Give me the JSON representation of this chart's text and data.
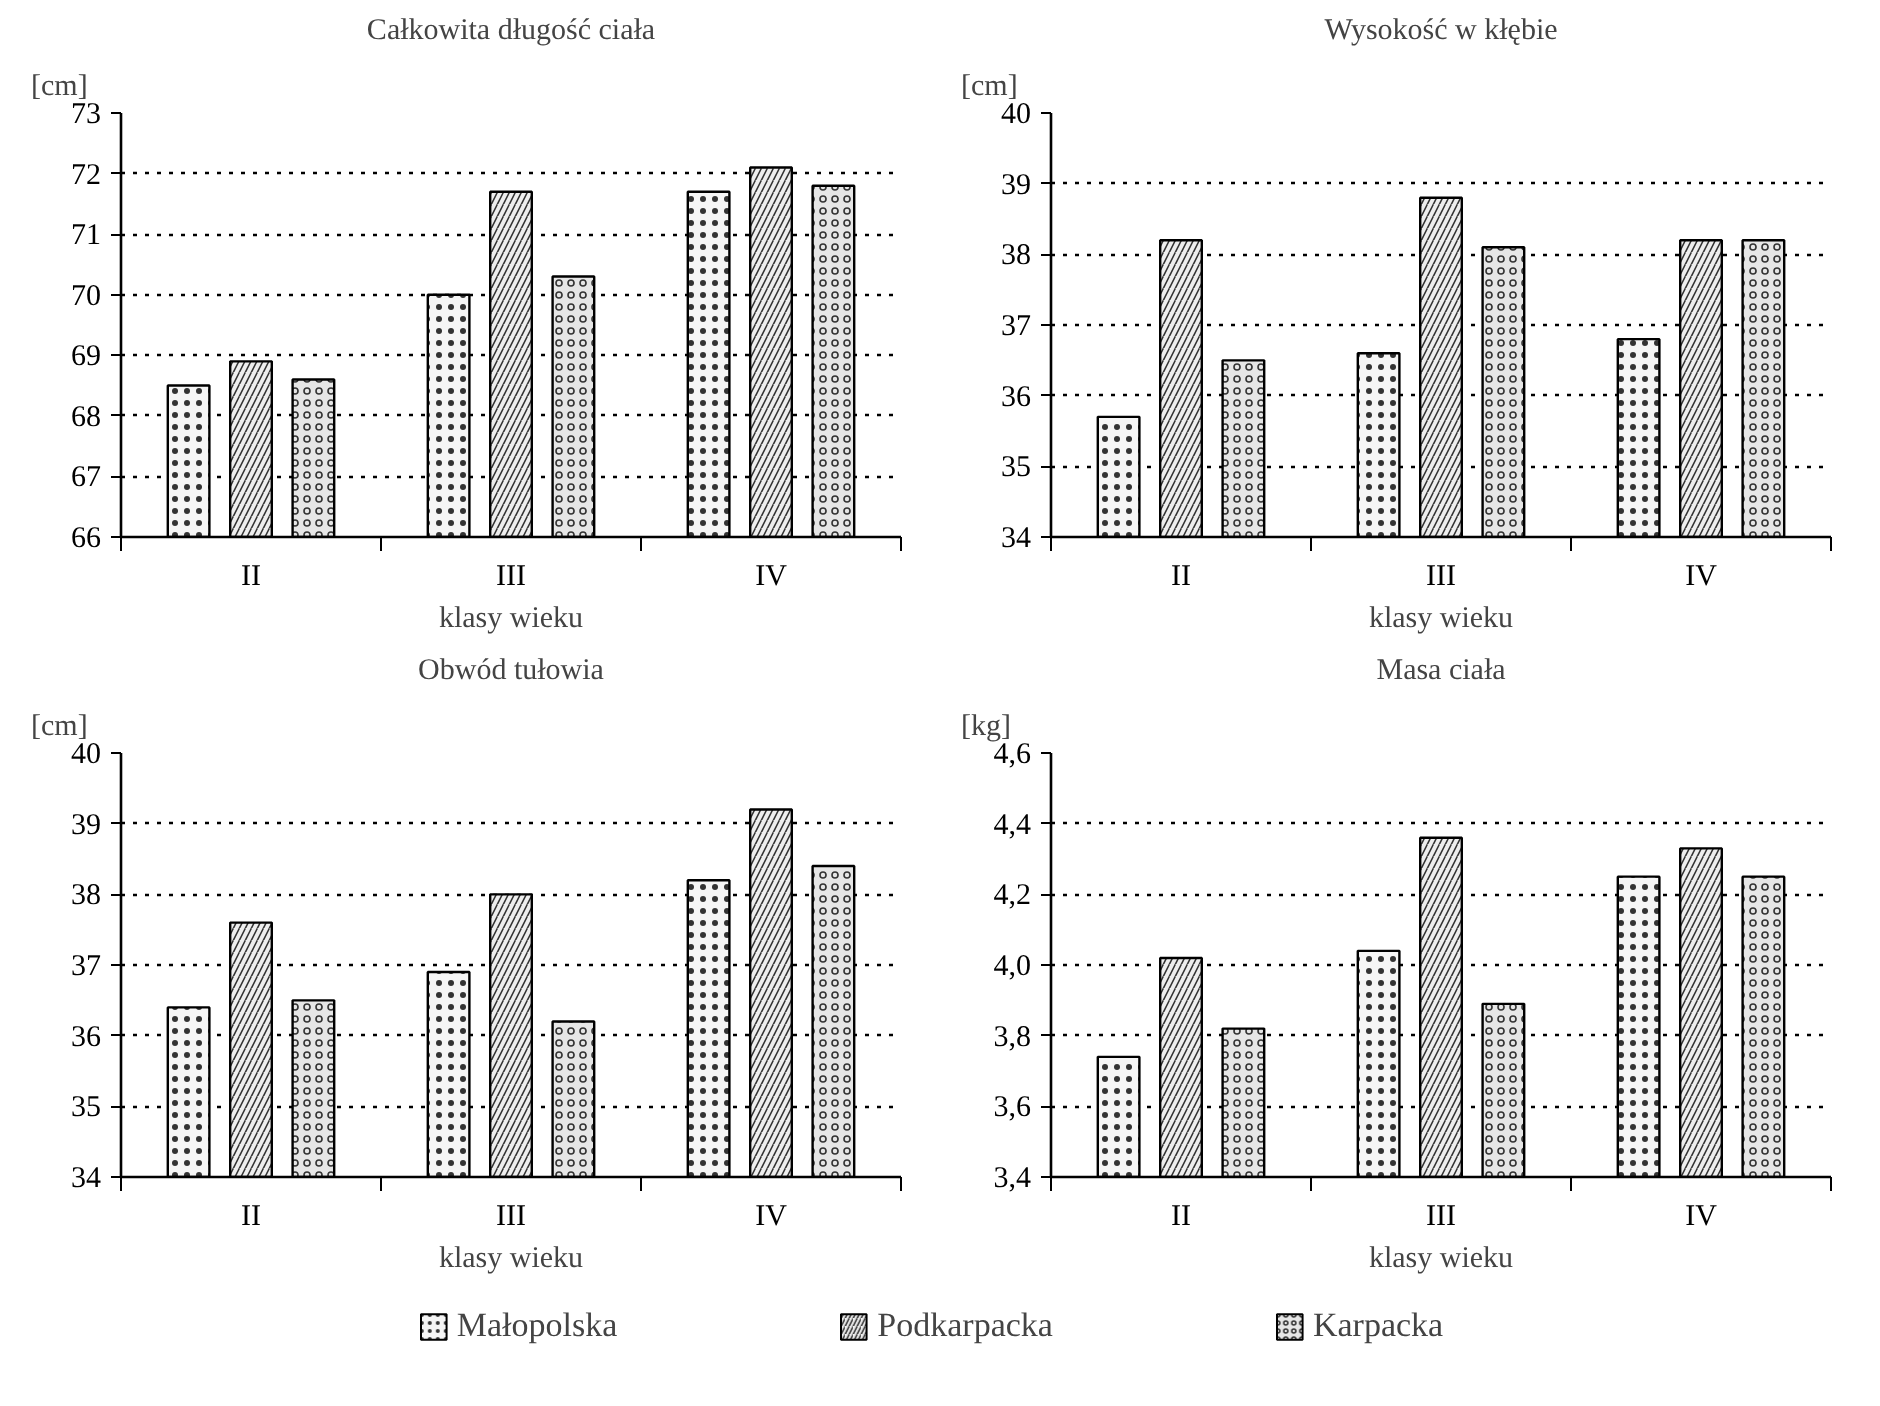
{
  "chart_data": [
    {
      "type": "bar",
      "title": "Całkowita długość ciała",
      "ylabel": "[cm]",
      "xlabel": "klasy wieku",
      "categories": [
        "II",
        "III",
        "IV"
      ],
      "series": [
        {
          "color": "#f5f5f5",
          "values": [
            68.5,
            70.0,
            71.7
          ]
        },
        {
          "color": "#eeeeee",
          "values": [
            68.9,
            71.7,
            72.1
          ]
        },
        {
          "color": "#e6e6e6",
          "values": [
            68.6,
            70.3,
            71.8
          ]
        }
      ],
      "ylim": [
        66,
        73
      ],
      "yticks": [
        66,
        67,
        68,
        69,
        70,
        71,
        72,
        73
      ],
      "grid": "y"
    },
    {
      "type": "bar",
      "title": "Wysokość w kłębie",
      "ylabel": "[cm]",
      "xlabel": "klasy wieku",
      "categories": [
        "II",
        "III",
        "IV"
      ],
      "series": [
        {
          "color": "#f5f5f5",
          "values": [
            35.7,
            36.6,
            36.8
          ]
        },
        {
          "color": "#eeeeee",
          "values": [
            38.2,
            38.8,
            38.2
          ]
        },
        {
          "color": "#e6e6e6",
          "values": [
            36.5,
            38.1,
            38.2
          ]
        }
      ],
      "ylim": [
        34,
        40
      ],
      "yticks": [
        34,
        35,
        36,
        37,
        38,
        39,
        40
      ],
      "grid": "y"
    },
    {
      "type": "bar",
      "title": "Obwód tułowia",
      "ylabel": "[cm]",
      "xlabel": "klasy wieku",
      "categories": [
        "II",
        "III",
        "IV"
      ],
      "series": [
        {
          "color": "#f5f5f5",
          "values": [
            36.4,
            36.9,
            38.2
          ]
        },
        {
          "color": "#eeeeee",
          "values": [
            37.6,
            38.0,
            39.2
          ]
        },
        {
          "color": "#e6e6e6",
          "values": [
            36.5,
            36.2,
            38.4
          ]
        }
      ],
      "ylim": [
        34,
        40
      ],
      "yticks": [
        34,
        35,
        36,
        37,
        38,
        39,
        40
      ],
      "grid": "y"
    },
    {
      "type": "bar",
      "title": "Masa ciała",
      "ylabel": "[kg]",
      "xlabel": "klasy wieku",
      "categories": [
        "II",
        "III",
        "IV"
      ],
      "series": [
        {
          "name": "Małopolska",
          "color": "#f5f5f5",
          "values": [
            3.74,
            4.04,
            4.25
          ]
        },
        {
          "name": "Podkarpacka",
          "color": "#eeeeee",
          "values": [
            4.02,
            4.36,
            4.33
          ]
        },
        {
          "name": "Karpacka",
          "color": "#e6e6e6",
          "values": [
            3.82,
            3.89,
            4.25
          ]
        }
      ],
      "ylim": [
        3.4,
        4.6
      ],
      "yticks": [
        {
          "value": 3.4,
          "label": "3,4"
        },
        {
          "value": 3.6,
          "label": "3,6"
        },
        {
          "value": 3.8,
          "label": "3,8"
        },
        {
          "value": 4.0,
          "label": "4,0"
        },
        {
          "value": 4.2,
          "label": "4,2"
        },
        {
          "value": 4.4,
          "label": "4,4"
        },
        {
          "value": 4.6,
          "label": "4,6"
        }
      ],
      "grid": "y",
      "legend": "bottom"
    }
  ]
}
